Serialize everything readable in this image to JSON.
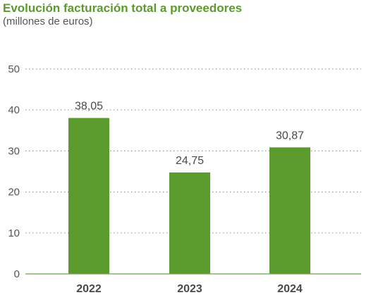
{
  "chart_data": {
    "type": "bar",
    "title": "Evolución facturación total a proveedores",
    "subtitle": "(millones de euros)",
    "categories": [
      "2022",
      "2023",
      "2024"
    ],
    "values": [
      38.05,
      24.75,
      30.87
    ],
    "value_labels": [
      "38,05",
      "24,75",
      "30,87"
    ],
    "ylim": [
      0,
      50
    ],
    "yticks": [
      0,
      10,
      20,
      30,
      40,
      50
    ],
    "ytick_labels": [
      "0",
      "10",
      "20",
      "30",
      "40",
      "50"
    ],
    "grid": true,
    "grid_style": "dotted",
    "bar_color": "#5b9a2d",
    "title_color": "#5b9a2d",
    "axis_color": "#6aa84f"
  }
}
